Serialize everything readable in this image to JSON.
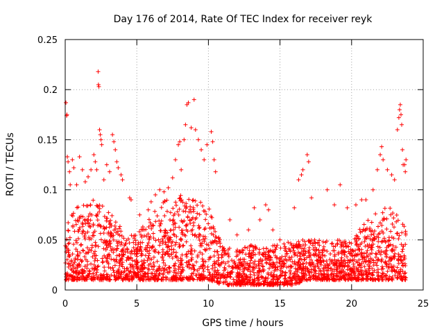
{
  "chart_data": {
    "type": "scatter",
    "title": "Day 176 of 2014, Rate Of TEC Index for receiver reyk",
    "xlabel": "GPS time / hours",
    "ylabel": "ROTI / TECUs",
    "xlim": [
      0,
      25
    ],
    "ylim": [
      0,
      0.25
    ],
    "x_ticks": [
      0,
      5,
      10,
      15,
      20,
      25
    ],
    "x_tick_labels": [
      "0",
      "5",
      "10",
      "15",
      "20",
      "25"
    ],
    "y_ticks": [
      0,
      0.05,
      0.1,
      0.15,
      0.2,
      0.25
    ],
    "y_tick_labels": [
      "0",
      "0.05",
      "0.1",
      "0.15",
      "0.2",
      "0.25"
    ],
    "grid": true,
    "marker": "+",
    "color": "#ff0000",
    "series": [
      {
        "name": "ROTI",
        "points": [
          [
            0.05,
            0.187
          ],
          [
            0.1,
            0.174
          ],
          [
            0.12,
            0.175
          ],
          [
            0.15,
            0.133
          ],
          [
            0.2,
            0.128
          ],
          [
            0.3,
            0.118
          ],
          [
            0.35,
            0.105
          ],
          [
            0.5,
            0.13
          ],
          [
            0.6,
            0.122
          ],
          [
            0.8,
            0.105
          ],
          [
            1.0,
            0.133
          ],
          [
            1.2,
            0.12
          ],
          [
            1.4,
            0.108
          ],
          [
            1.6,
            0.113
          ],
          [
            1.8,
            0.12
          ],
          [
            2.0,
            0.135
          ],
          [
            2.1,
            0.128
          ],
          [
            2.2,
            0.12
          ],
          [
            2.3,
            0.218
          ],
          [
            2.32,
            0.205
          ],
          [
            2.35,
            0.203
          ],
          [
            2.4,
            0.16
          ],
          [
            2.45,
            0.155
          ],
          [
            2.5,
            0.15
          ],
          [
            2.55,
            0.145
          ],
          [
            2.7,
            0.11
          ],
          [
            2.9,
            0.125
          ],
          [
            3.1,
            0.118
          ],
          [
            3.3,
            0.155
          ],
          [
            3.4,
            0.148
          ],
          [
            3.5,
            0.14
          ],
          [
            3.6,
            0.128
          ],
          [
            3.7,
            0.122
          ],
          [
            3.9,
            0.115
          ],
          [
            4.0,
            0.11
          ],
          [
            4.5,
            0.092
          ],
          [
            4.6,
            0.09
          ],
          [
            5.2,
            0.075
          ],
          [
            5.8,
            0.08
          ],
          [
            6.0,
            0.088
          ],
          [
            6.3,
            0.095
          ],
          [
            6.6,
            0.1
          ],
          [
            6.9,
            0.098
          ],
          [
            7.2,
            0.102
          ],
          [
            7.5,
            0.112
          ],
          [
            7.7,
            0.13
          ],
          [
            7.9,
            0.145
          ],
          [
            8.0,
            0.148
          ],
          [
            8.1,
            0.12
          ],
          [
            8.3,
            0.15
          ],
          [
            8.4,
            0.165
          ],
          [
            8.5,
            0.185
          ],
          [
            8.6,
            0.187
          ],
          [
            8.8,
            0.162
          ],
          [
            9.0,
            0.19
          ],
          [
            9.1,
            0.16
          ],
          [
            9.3,
            0.15
          ],
          [
            9.5,
            0.14
          ],
          [
            9.7,
            0.13
          ],
          [
            9.9,
            0.145
          ],
          [
            10.2,
            0.158
          ],
          [
            10.3,
            0.148
          ],
          [
            10.4,
            0.13
          ],
          [
            10.5,
            0.118
          ],
          [
            11.5,
            0.07
          ],
          [
            12.0,
            0.055
          ],
          [
            12.8,
            0.06
          ],
          [
            13.2,
            0.082
          ],
          [
            13.6,
            0.07
          ],
          [
            14.0,
            0.085
          ],
          [
            14.2,
            0.08
          ],
          [
            14.5,
            0.06
          ],
          [
            15.0,
            0.05
          ],
          [
            16.0,
            0.082
          ],
          [
            16.3,
            0.11
          ],
          [
            16.5,
            0.115
          ],
          [
            16.6,
            0.12
          ],
          [
            16.9,
            0.135
          ],
          [
            17.0,
            0.128
          ],
          [
            17.2,
            0.092
          ],
          [
            18.3,
            0.1
          ],
          [
            18.8,
            0.085
          ],
          [
            19.2,
            0.105
          ],
          [
            19.7,
            0.082
          ],
          [
            20.3,
            0.085
          ],
          [
            20.7,
            0.09
          ],
          [
            21.0,
            0.09
          ],
          [
            21.5,
            0.1
          ],
          [
            21.8,
            0.12
          ],
          [
            22.0,
            0.135
          ],
          [
            22.1,
            0.143
          ],
          [
            22.2,
            0.13
          ],
          [
            22.5,
            0.12
          ],
          [
            22.8,
            0.115
          ],
          [
            23.0,
            0.11
          ],
          [
            23.2,
            0.16
          ],
          [
            23.3,
            0.172
          ],
          [
            23.35,
            0.18
          ],
          [
            23.4,
            0.185
          ],
          [
            23.45,
            0.175
          ],
          [
            23.5,
            0.165
          ],
          [
            23.55,
            0.14
          ],
          [
            23.6,
            0.125
          ],
          [
            23.7,
            0.125
          ],
          [
            23.75,
            0.118
          ],
          [
            23.8,
            0.13
          ]
        ],
        "dense_envelope": {
          "hours": [
            0,
            1,
            2,
            3,
            4,
            5,
            6,
            7,
            8,
            9,
            10,
            11,
            12,
            13,
            14,
            15,
            16,
            17,
            18,
            19,
            20,
            21,
            22,
            23,
            23.8
          ],
          "typical_max": [
            0.07,
            0.085,
            0.09,
            0.08,
            0.06,
            0.055,
            0.075,
            0.09,
            0.095,
            0.09,
            0.085,
            0.045,
            0.04,
            0.045,
            0.045,
            0.045,
            0.05,
            0.05,
            0.05,
            0.05,
            0.05,
            0.07,
            0.08,
            0.085,
            0.06
          ],
          "typical_min": [
            0.01,
            0.01,
            0.01,
            0.01,
            0.01,
            0.01,
            0.01,
            0.01,
            0.01,
            0.01,
            0.01,
            0.005,
            0.005,
            0.005,
            0.005,
            0.005,
            0.005,
            0.01,
            0.01,
            0.01,
            0.01,
            0.01,
            0.01,
            0.01,
            0.01
          ]
        }
      }
    ]
  }
}
